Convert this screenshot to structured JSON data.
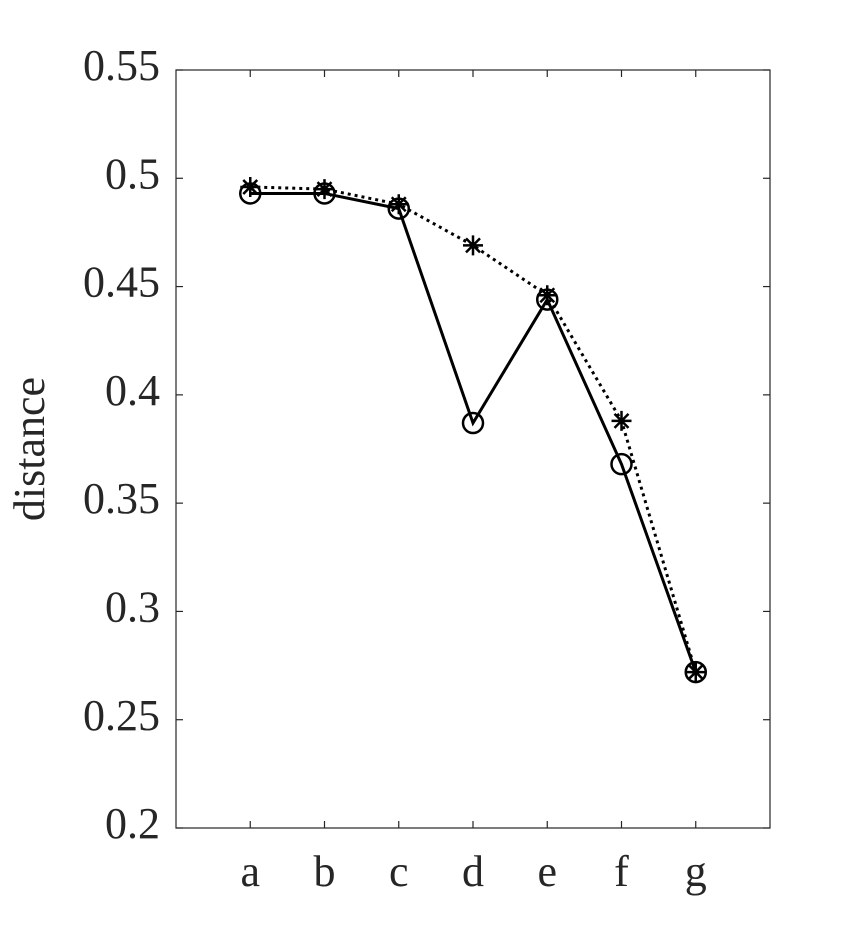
{
  "chart_data": {
    "type": "line",
    "ylabel": "distance",
    "categories": [
      "a",
      "b",
      "c",
      "d",
      "e",
      "f",
      "g"
    ],
    "series": [
      {
        "color": "#000000",
        "linestyle": "solid",
        "marker": "o",
        "values": [
          0.493,
          0.493,
          0.486,
          0.387,
          0.444,
          0.368,
          0.272
        ]
      },
      {
        "color": "#000000",
        "linestyle": "dotted",
        "marker": "*",
        "values": [
          0.496,
          0.495,
          0.488,
          0.469,
          0.446,
          0.388,
          0.272
        ]
      }
    ],
    "ylim": [
      0.2,
      0.55
    ],
    "yticks": [
      0.2,
      0.25,
      0.3,
      0.35,
      0.4,
      0.45,
      0.5,
      0.55
    ]
  }
}
